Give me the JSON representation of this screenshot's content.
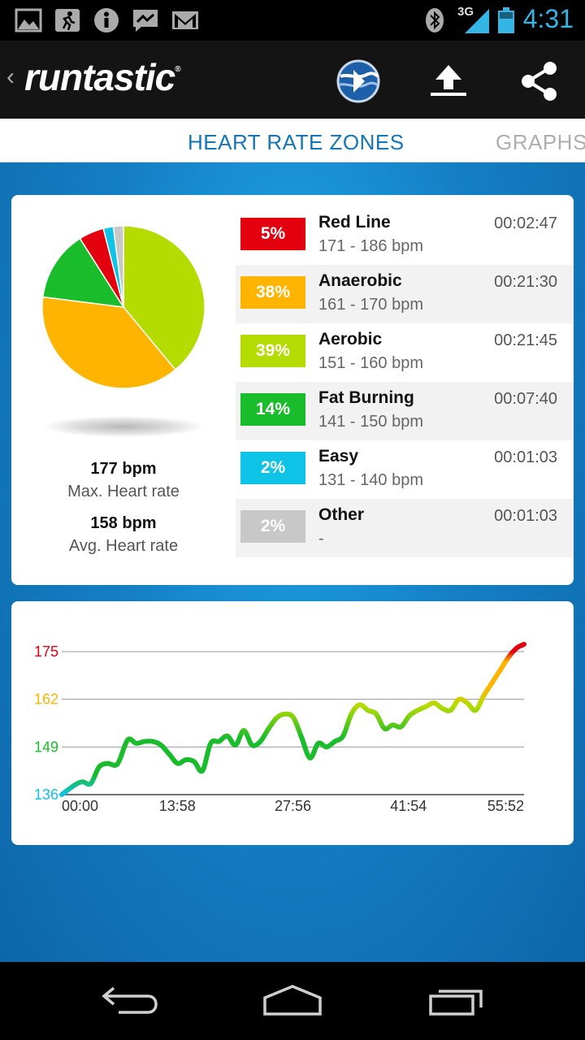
{
  "status_bar": {
    "time": "4:31",
    "network": "3G",
    "left_icons": [
      "image-icon",
      "runner-icon",
      "info-icon",
      "messenger-icon",
      "gmail-icon"
    ],
    "right_icons": [
      "bluetooth-icon",
      "signal-icon",
      "battery-icon"
    ],
    "accent": "#33b5e5"
  },
  "action_bar": {
    "logo_text": "runtastic",
    "logo_mark": "®",
    "buttons": [
      "globe-icon",
      "upload-icon",
      "share-icon"
    ]
  },
  "tabs": {
    "active": "HEART RATE ZONES",
    "next": "GRAPHS"
  },
  "summary": {
    "max_value": "177 bpm",
    "max_label": "Max. Heart rate",
    "avg_value": "158 bpm",
    "avg_label": "Avg. Heart rate"
  },
  "zones": [
    {
      "percent": "5%",
      "name": "Red Line",
      "range": "171 - 186 bpm",
      "time": "00:02:47",
      "color": "#e3000f",
      "share": 0.05
    },
    {
      "percent": "38%",
      "name": "Anaerobic",
      "range": "161 - 170 bpm",
      "time": "00:21:30",
      "color": "#ffb400",
      "share": 0.38
    },
    {
      "percent": "39%",
      "name": "Aerobic",
      "range": "151 - 160 bpm",
      "time": "00:21:45",
      "color": "#b4dc00",
      "share": 0.39
    },
    {
      "percent": "14%",
      "name": "Fat Burning",
      "range": "141 - 150 bpm",
      "time": "00:07:40",
      "color": "#19bc2a",
      "share": 0.14
    },
    {
      "percent": "2%",
      "name": "Easy",
      "range": "131 - 140 bpm",
      "time": "00:01:03",
      "color": "#0fc3e6",
      "share": 0.02
    },
    {
      "percent": "2%",
      "name": "Other",
      "range": "-",
      "time": "00:01:03",
      "color": "#c8c8c8",
      "share": 0.02
    }
  ],
  "chart_data": {
    "type": "line",
    "y_ticks": [
      "175",
      "162",
      "149",
      "136"
    ],
    "y_tick_colors": [
      "#e3000f",
      "#ffb400",
      "#19bc2a",
      "#0fc3e6"
    ],
    "x_ticks": [
      "00:00",
      "13:58",
      "27:56",
      "41:54",
      "55:52"
    ],
    "ylim": [
      136,
      175
    ],
    "xlim_minutes": [
      0,
      55.87
    ],
    "series": [
      {
        "x": [
          0,
          1.5,
          2.5,
          3.5,
          4.5,
          5.5,
          6.5,
          7,
          8,
          9,
          10,
          11,
          12,
          13,
          14,
          15,
          16,
          17,
          18,
          19,
          20,
          21,
          22,
          23,
          24,
          25,
          26,
          27,
          28,
          29,
          30,
          31,
          32,
          33,
          34,
          35,
          36,
          37,
          38,
          39,
          40,
          41,
          42,
          43,
          44,
          45,
          46,
          47,
          48,
          49,
          50,
          51,
          52,
          53,
          54,
          55,
          55.87
        ],
        "y": [
          136,
          138.5,
          139.5,
          139,
          143.5,
          144.5,
          144,
          145.5,
          151,
          150,
          150.5,
          150.5,
          149.5,
          147,
          144.5,
          145.5,
          145,
          142.5,
          150,
          150.5,
          152,
          149.5,
          153.5,
          149.5,
          150.5,
          154,
          157,
          158,
          157,
          151.5,
          146,
          150,
          149,
          150.5,
          152,
          158,
          160.5,
          159,
          158,
          154,
          155,
          154.5,
          157.5,
          159,
          160,
          161,
          159.5,
          159,
          162,
          161,
          159,
          163,
          166.5,
          170,
          173.5,
          176,
          177
        ]
      }
    ]
  }
}
